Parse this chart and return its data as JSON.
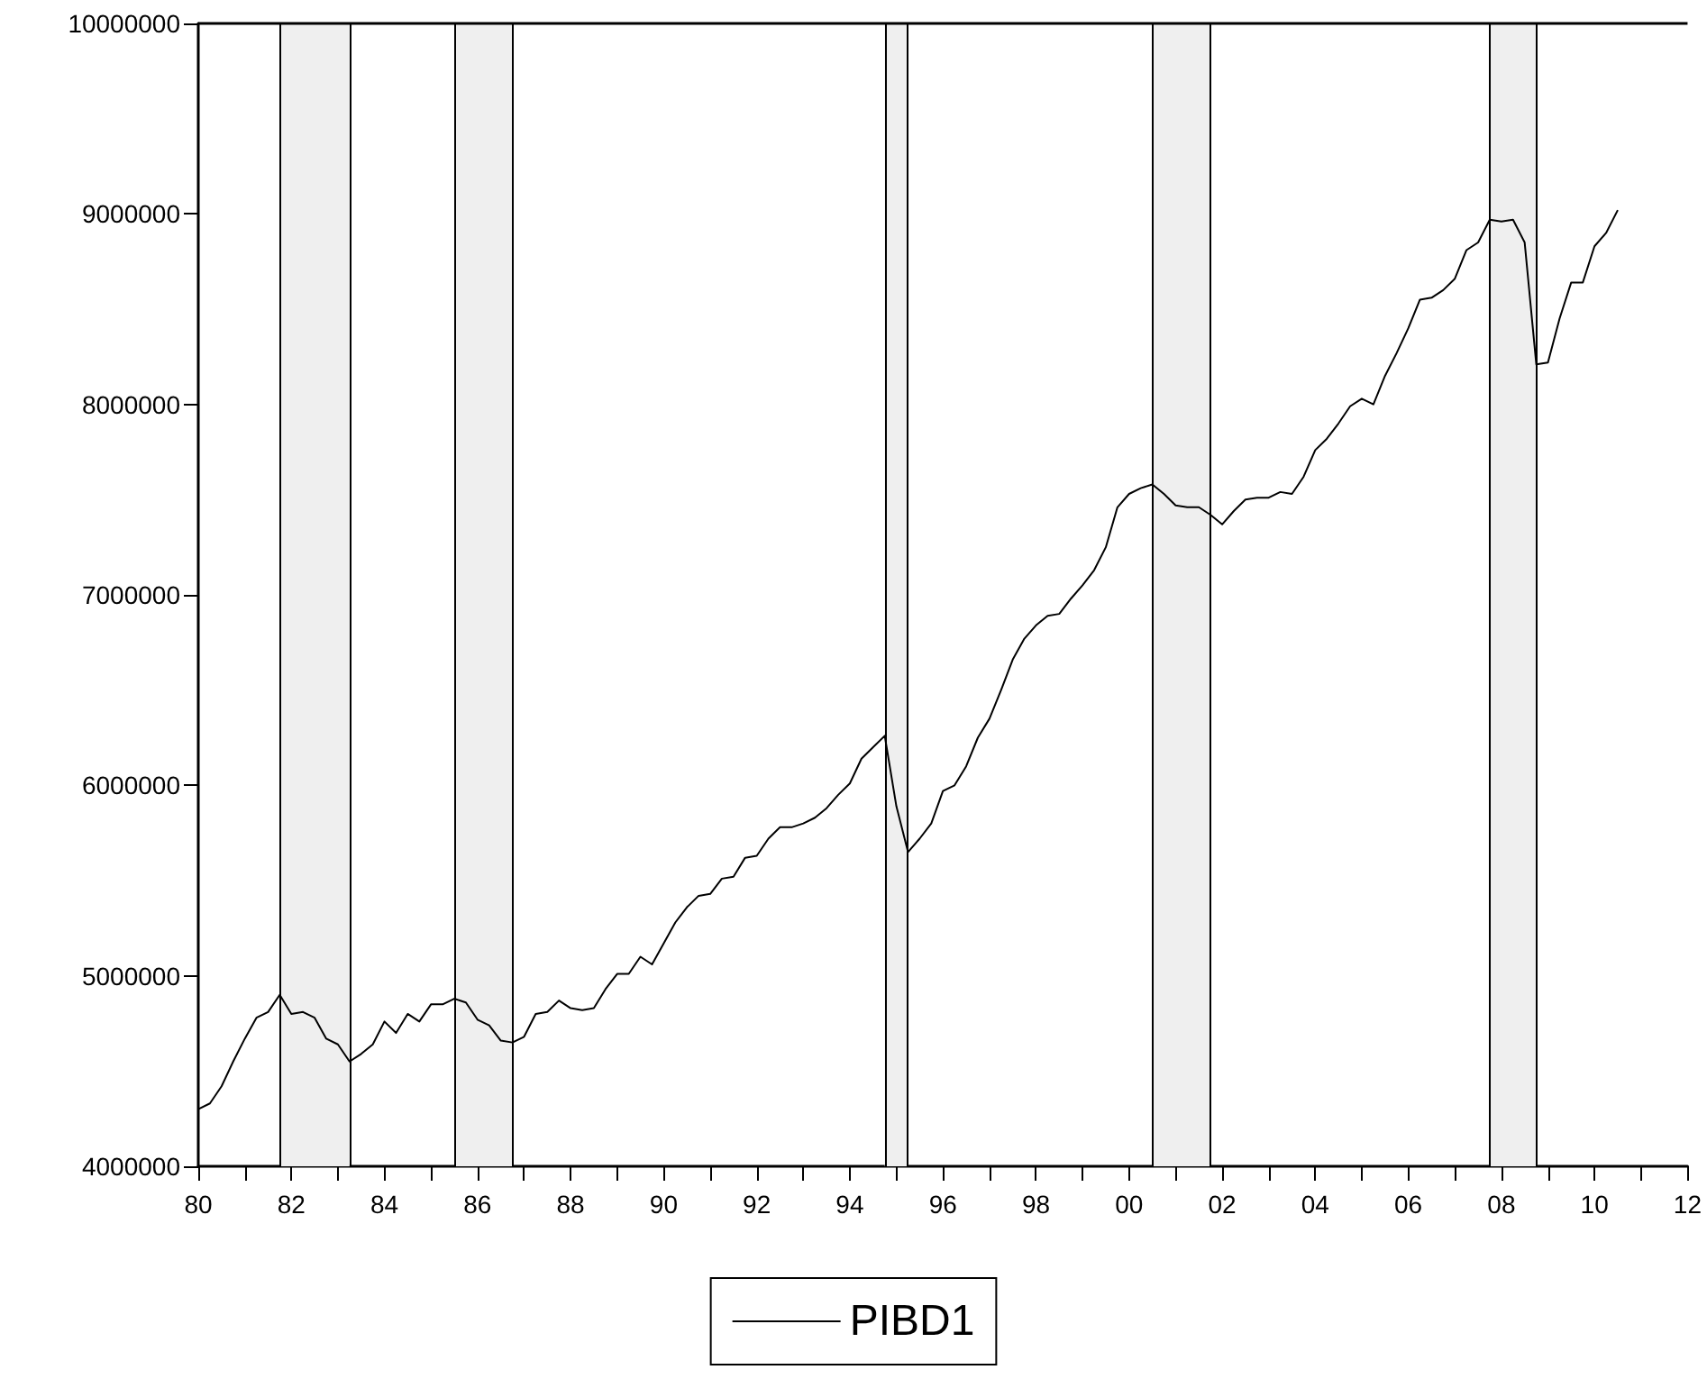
{
  "chart_data": {
    "type": "line",
    "xlim": [
      1980,
      2012
    ],
    "ylim": [
      4000000,
      10000000
    ],
    "xticks": [
      {
        "value": 1980,
        "label": "80"
      },
      {
        "value": 1981,
        "label": null
      },
      {
        "value": 1982,
        "label": "82"
      },
      {
        "value": 1983,
        "label": null
      },
      {
        "value": 1984,
        "label": "84"
      },
      {
        "value": 1985,
        "label": null
      },
      {
        "value": 1986,
        "label": "86"
      },
      {
        "value": 1987,
        "label": null
      },
      {
        "value": 1988,
        "label": "88"
      },
      {
        "value": 1989,
        "label": null
      },
      {
        "value": 1990,
        "label": "90"
      },
      {
        "value": 1991,
        "label": null
      },
      {
        "value": 1992,
        "label": "92"
      },
      {
        "value": 1993,
        "label": null
      },
      {
        "value": 1994,
        "label": "94"
      },
      {
        "value": 1995,
        "label": null
      },
      {
        "value": 1996,
        "label": "96"
      },
      {
        "value": 1997,
        "label": null
      },
      {
        "value": 1998,
        "label": "98"
      },
      {
        "value": 1999,
        "label": null
      },
      {
        "value": 2000,
        "label": "00"
      },
      {
        "value": 2001,
        "label": null
      },
      {
        "value": 2002,
        "label": "02"
      },
      {
        "value": 2003,
        "label": null
      },
      {
        "value": 2004,
        "label": "04"
      },
      {
        "value": 2005,
        "label": null
      },
      {
        "value": 2006,
        "label": "06"
      },
      {
        "value": 2007,
        "label": null
      },
      {
        "value": 2008,
        "label": "08"
      },
      {
        "value": 2009,
        "label": null
      },
      {
        "value": 2010,
        "label": "10"
      },
      {
        "value": 2011,
        "label": null
      },
      {
        "value": 2012,
        "label": "12"
      }
    ],
    "yticks": [
      4000000,
      5000000,
      6000000,
      7000000,
      8000000,
      9000000,
      10000000
    ],
    "grid": false,
    "legend": "bottom",
    "marker": "none",
    "line_style": "solid",
    "bands": [
      {
        "axis": "x",
        "from": 1981.75,
        "to": 1983.25,
        "color": "#efefef"
      },
      {
        "axis": "x",
        "from": 1985.5,
        "to": 1986.75,
        "color": "#efefef"
      },
      {
        "axis": "x",
        "from": 1994.75,
        "to": 1995.25,
        "color": "#efefef"
      },
      {
        "axis": "x",
        "from": 2000.5,
        "to": 2001.75,
        "color": "#efefef"
      },
      {
        "axis": "x",
        "from": 2007.75,
        "to": 2008.75,
        "color": "#efefef"
      }
    ],
    "series": [
      {
        "name": "PIBD1",
        "color": "#000000",
        "x": [
          1980,
          1980.25,
          1980.5,
          1980.75,
          1981,
          1981.25,
          1981.5,
          1981.75,
          1982,
          1982.25,
          1982.5,
          1982.75,
          1983,
          1983.25,
          1983.5,
          1983.75,
          1984,
          1984.25,
          1984.5,
          1984.75,
          1985,
          1985.25,
          1985.5,
          1985.75,
          1986,
          1986.25,
          1986.5,
          1986.75,
          1987,
          1987.25,
          1987.5,
          1987.75,
          1988,
          1988.25,
          1988.5,
          1988.75,
          1989,
          1989.25,
          1989.5,
          1989.75,
          1990,
          1990.25,
          1990.5,
          1990.75,
          1991,
          1991.25,
          1991.5,
          1991.75,
          1992,
          1992.25,
          1992.5,
          1992.75,
          1993,
          1993.25,
          1993.5,
          1993.75,
          1994,
          1994.25,
          1994.5,
          1994.75,
          1995,
          1995.25,
          1995.5,
          1995.75,
          1996,
          1996.25,
          1996.5,
          1996.75,
          1997,
          1997.25,
          1997.5,
          1997.75,
          1998,
          1998.25,
          1998.5,
          1998.75,
          1999,
          1999.25,
          1999.5,
          1999.75,
          2000,
          2000.25,
          2000.5,
          2000.75,
          2001,
          2001.25,
          2001.5,
          2001.75,
          2002,
          2002.25,
          2002.5,
          2002.75,
          2003,
          2003.25,
          2003.5,
          2003.75,
          2004,
          2004.25,
          2004.5,
          2004.75,
          2005,
          2005.25,
          2005.5,
          2005.75,
          2006,
          2006.25,
          2006.5,
          2006.75,
          2007,
          2007.25,
          2007.5,
          2007.75,
          2008,
          2008.25,
          2008.5,
          2008.75,
          2009,
          2009.25,
          2009.5,
          2009.75,
          2010,
          2010.25,
          2010.5
        ],
        "values": [
          4300000,
          4330000,
          4420000,
          4550000,
          4670000,
          4780000,
          4810000,
          4900000,
          4800000,
          4810000,
          4780000,
          4670000,
          4640000,
          4550000,
          4590000,
          4640000,
          4760000,
          4700000,
          4800000,
          4760000,
          4850000,
          4850000,
          4880000,
          4860000,
          4770000,
          4740000,
          4660000,
          4650000,
          4680000,
          4800000,
          4810000,
          4870000,
          4830000,
          4820000,
          4830000,
          4930000,
          5010000,
          5010000,
          5100000,
          5060000,
          5170000,
          5280000,
          5360000,
          5420000,
          5430000,
          5510000,
          5520000,
          5620000,
          5630000,
          5720000,
          5780000,
          5780000,
          5800000,
          5830000,
          5880000,
          5950000,
          6010000,
          6140000,
          6200000,
          6260000,
          5890000,
          5650000,
          5720000,
          5800000,
          5970000,
          6000000,
          6100000,
          6250000,
          6350000,
          6500000,
          6660000,
          6770000,
          6840000,
          6890000,
          6900000,
          6980000,
          7050000,
          7130000,
          7250000,
          7460000,
          7530000,
          7560000,
          7580000,
          7530000,
          7470000,
          7460000,
          7460000,
          7420000,
          7370000,
          7440000,
          7500000,
          7510000,
          7510000,
          7540000,
          7530000,
          7620000,
          7760000,
          7820000,
          7900000,
          7990000,
          8030000,
          8000000,
          8150000,
          8270000,
          8400000,
          8550000,
          8560000,
          8600000,
          8660000,
          8810000,
          8850000,
          8970000,
          8960000,
          8970000,
          8850000,
          8210000,
          8220000,
          8450000,
          8640000,
          8640000,
          8830000,
          8900000,
          9020000
        ]
      }
    ]
  }
}
